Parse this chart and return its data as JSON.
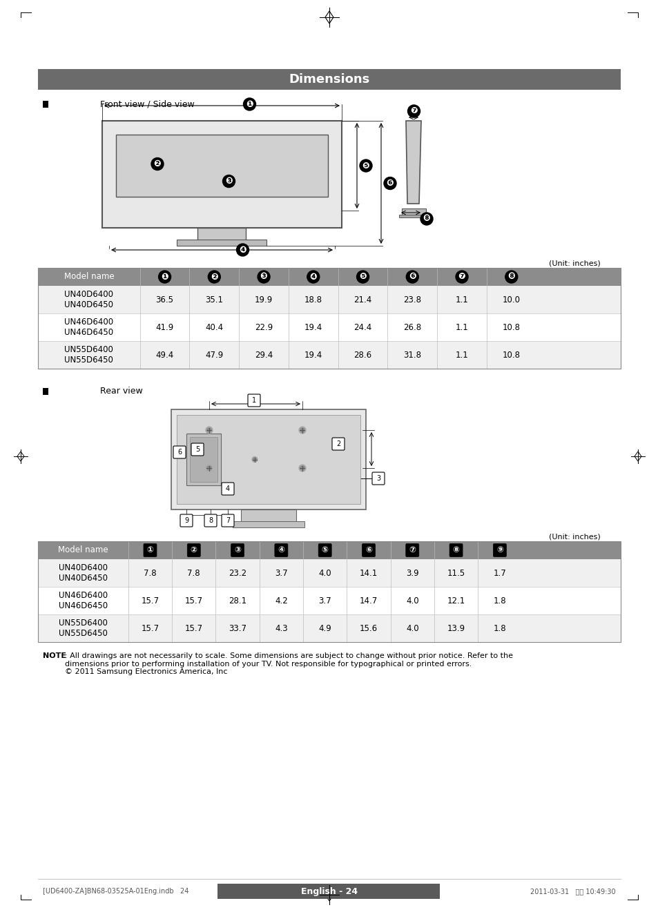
{
  "title": "Dimensions",
  "title_bg": "#6b6b6b",
  "title_fg": "#ffffff",
  "page_bg": "#ffffff",
  "section1_label": "Front view / Side view",
  "section2_label": "Rear view",
  "front_table_header": [
    "Model name",
    "❶",
    "❷",
    "❸",
    "❹",
    "❺",
    "❻",
    "❼",
    "❽"
  ],
  "front_table_rows": [
    [
      "UN40D6400\nUN40D6450",
      "36.5",
      "35.1",
      "19.9",
      "18.8",
      "21.4",
      "23.8",
      "1.1",
      "10.0"
    ],
    [
      "UN46D6400\nUN46D6450",
      "41.9",
      "40.4",
      "22.9",
      "19.4",
      "24.4",
      "26.8",
      "1.1",
      "10.8"
    ],
    [
      "UN55D6400\nUN55D6450",
      "49.4",
      "47.9",
      "29.4",
      "19.4",
      "28.6",
      "31.8",
      "1.1",
      "10.8"
    ]
  ],
  "rear_table_header": [
    "Model name",
    "①",
    "②",
    "③",
    "④",
    "⑤",
    "⑥",
    "⑦",
    "⑧",
    "⑨"
  ],
  "rear_table_rows": [
    [
      "UN40D6400\nUN40D6450",
      "7.8",
      "7.8",
      "23.2",
      "3.7",
      "4.0",
      "14.1",
      "3.9",
      "11.5",
      "1.7"
    ],
    [
      "UN46D6400\nUN46D6450",
      "15.7",
      "15.7",
      "28.1",
      "4.2",
      "3.7",
      "14.7",
      "4.0",
      "12.1",
      "1.8"
    ],
    [
      "UN55D6400\nUN55D6450",
      "15.7",
      "15.7",
      "33.7",
      "4.3",
      "4.9",
      "15.6",
      "4.0",
      "13.9",
      "1.8"
    ]
  ],
  "unit_text": "(Unit: inches)",
  "note_bold": "NOTE",
  "note_text": ": All drawings are not necessarily to scale. Some dimensions are subject to change without prior notice. Refer to the\ndimensions prior to performing installation of your TV. Not responsible for typographical or printed errors.\n© 2011 Samsung Electronics America, Inc",
  "footer_text": "English - 24",
  "footer_left": "[UD6400-ZA]BN68-03525A-01Eng.indb   24",
  "footer_right": "2011-03-31   오전 10:49:30",
  "header_bg": "#8c8c8c",
  "table_border": "#aaaaaa"
}
